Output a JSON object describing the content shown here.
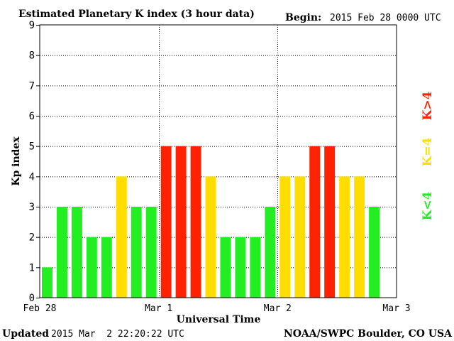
{
  "header": {
    "title": "Estimated Planetary K index (3 hour data)",
    "begin_label": "Begin:",
    "begin_value": "2015 Feb 28 0000 UTC"
  },
  "footer": {
    "updated_label": "Updated",
    "updated_value": "2015 Mar  2 22:20:22 UTC",
    "credit": "NOAA/SWPC Boulder, CO USA"
  },
  "legend": {
    "high": "K>4",
    "equal": "K=4",
    "low": "K<4"
  },
  "colors": {
    "low": "#22ee22",
    "equal": "#ffdd00",
    "high": "#ff2200",
    "grid": "#000000",
    "text": "#000000"
  },
  "chart_data": {
    "type": "bar",
    "title": "Estimated Planetary K index (3 hour data)",
    "xlabel": "Universal Time",
    "ylabel": "Kp index",
    "ylim": [
      0,
      9
    ],
    "yticks": [
      "0",
      "1",
      "2",
      "3",
      "4",
      "5",
      "6",
      "7",
      "8",
      "9"
    ],
    "xticks": [
      "Feb 28",
      "Mar 1",
      "Mar 2",
      "Mar 3"
    ],
    "grid": true,
    "legend_placement": "right",
    "bins_per_day": 8,
    "days": 3,
    "values": [
      1,
      3,
      3,
      2,
      2,
      4,
      3,
      3,
      5,
      5,
      5,
      4,
      2,
      2,
      2,
      3,
      4,
      4,
      5,
      5,
      4,
      4,
      3
    ]
  }
}
